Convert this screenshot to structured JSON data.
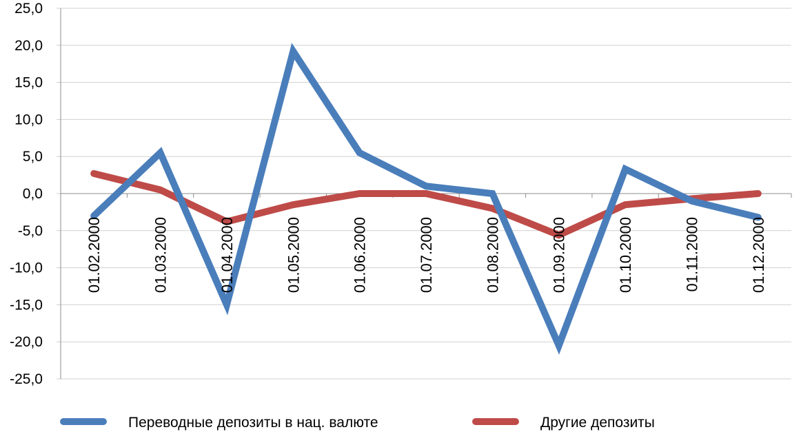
{
  "chart_data": {
    "type": "line",
    "categories": [
      "01.02.2000",
      "01.03.2000",
      "01.04.2000",
      "01.05.2000",
      "01.06.2000",
      "01.07.2000",
      "01.08.2000",
      "01.09.2000",
      "01.10.2000",
      "01.11.2000",
      "01.12.2000"
    ],
    "y_ticks": [
      "25,0",
      "20,0",
      "15,0",
      "10,0",
      "5,0",
      "0,0",
      "-5,0",
      "-10,0",
      "-15,0",
      "-20,0",
      "-25,0"
    ],
    "ylim": [
      -25,
      25
    ],
    "grid": "horizontal",
    "legend_position": "bottom",
    "series": [
      {
        "name": "Переводные депозиты в нац. валюте",
        "color": "#4a7ebb",
        "values": [
          -3.0,
          5.5,
          -15.0,
          19.2,
          5.5,
          1.0,
          0.0,
          -20.5,
          3.3,
          -1.0,
          -3.2
        ]
      },
      {
        "name": "Другие депозиты",
        "color": "#be4b48",
        "values": [
          2.7,
          0.5,
          -3.8,
          -1.5,
          0.0,
          0.0,
          -2.0,
          -5.6,
          -1.5,
          -0.7,
          0.0
        ]
      }
    ]
  }
}
